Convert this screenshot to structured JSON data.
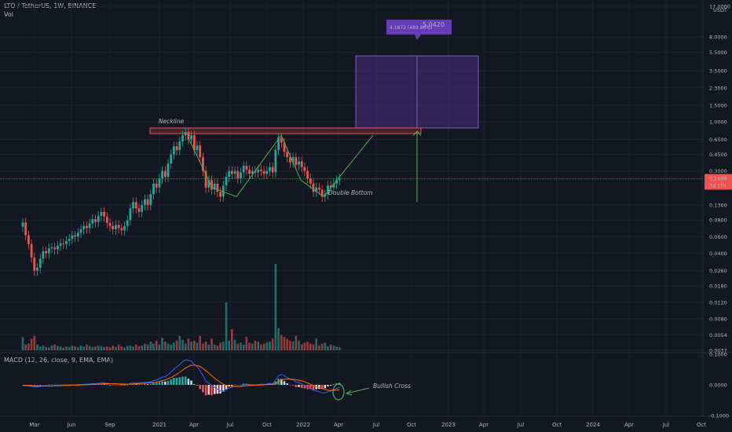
{
  "header": {
    "title": "LTO / TetherUS, 1W, BINANCE",
    "vol_label": "Vol",
    "macd_label": "MACD (12, 26, close, 9, EMA, EMA)"
  },
  "colors": {
    "background": "#131722",
    "bull": "#26a69a",
    "bear": "#ef5350",
    "annotation_green": "#4caf50",
    "target_box": "#673ab7",
    "macd_line": "#2962ff",
    "signal_line": "#ff6d00",
    "text": "#b2b5be"
  },
  "price_axis": {
    "currency": "USDT",
    "ticks": [
      "17.0000",
      "8.0000",
      "5.5000",
      "3.5000",
      "2.3000",
      "1.5000",
      "1.0000",
      "0.6500",
      "0.4500",
      "0.3000",
      "0.1300",
      "0.0900",
      "0.0600",
      "0.0400",
      "0.0260",
      "0.0180",
      "0.0120",
      "0.0080",
      "0.0054",
      "0.0037"
    ],
    "current_price": "0.2486",
    "countdown": "3d 17h"
  },
  "macd_axis": {
    "ticks": [
      "0.1000",
      "0.0000",
      "-0.1000"
    ]
  },
  "time_axis": {
    "labels": [
      "Mar",
      "Jun",
      "Sep",
      "2021",
      "Apr",
      "Jul",
      "Oct",
      "2022",
      "Apr",
      "Jul",
      "Oct",
      "2023",
      "Apr",
      "Jul",
      "Oct",
      "2024",
      "Apr",
      "Jul",
      "Oct"
    ]
  },
  "annotations": {
    "neckline": "Neckline",
    "pattern": "Double Bottom",
    "macd_note": "Bullish Cross",
    "target_change": "4.1872 (489.86%)",
    "target_price": "5.0420"
  },
  "chart_data": {
    "type": "candlestick",
    "symbol": "LTO / TetherUS",
    "interval": "1W",
    "exchange": "BINANCE",
    "y_scale": "log",
    "ylim": [
      0.0037,
      17
    ],
    "neckline_zone": [
      0.75,
      0.86
    ],
    "target_box": [
      0.86,
      5.042
    ],
    "x_range": [
      "2020-03",
      "2024-10"
    ],
    "close": [
      0.085,
      0.062,
      0.05,
      0.036,
      0.026,
      0.028,
      0.035,
      0.042,
      0.04,
      0.045,
      0.046,
      0.044,
      0.048,
      0.051,
      0.05,
      0.054,
      0.057,
      0.062,
      0.06,
      0.066,
      0.072,
      0.078,
      0.074,
      0.083,
      0.092,
      0.086,
      0.1,
      0.11,
      0.098,
      0.084,
      0.078,
      0.072,
      0.08,
      0.074,
      0.07,
      0.078,
      0.09,
      0.12,
      0.14,
      0.12,
      0.11,
      0.13,
      0.15,
      0.13,
      0.17,
      0.22,
      0.2,
      0.25,
      0.3,
      0.26,
      0.36,
      0.45,
      0.55,
      0.5,
      0.62,
      0.72,
      0.78,
      0.65,
      0.72,
      0.5,
      0.56,
      0.42,
      0.3,
      0.2,
      0.24,
      0.19,
      0.22,
      0.18,
      0.16,
      0.21,
      0.26,
      0.3,
      0.28,
      0.3,
      0.25,
      0.29,
      0.34,
      0.31,
      0.28,
      0.3,
      0.29,
      0.31,
      0.3,
      0.28,
      0.3,
      0.33,
      0.29,
      0.5,
      0.68,
      0.6,
      0.48,
      0.42,
      0.37,
      0.42,
      0.35,
      0.38,
      0.33,
      0.3,
      0.25,
      0.22,
      0.18,
      0.2,
      0.19,
      0.16,
      0.17,
      0.21,
      0.2,
      0.22,
      0.24,
      0.2486
    ],
    "volume": [
      0.28,
      0.12,
      0.14,
      0.24,
      0.3,
      0.12,
      0.08,
      0.1,
      0.07,
      0.06,
      0.1,
      0.12,
      0.09,
      0.08,
      0.06,
      0.08,
      0.07,
      0.1,
      0.08,
      0.06,
      0.1,
      0.08,
      0.12,
      0.09,
      0.07,
      0.08,
      0.1,
      0.09,
      0.07,
      0.08,
      0.06,
      0.1,
      0.07,
      0.12,
      0.08,
      0.06,
      0.09,
      0.1,
      0.08,
      0.12,
      0.09,
      0.1,
      0.14,
      0.12,
      0.18,
      0.14,
      0.2,
      0.12,
      0.26,
      0.18,
      0.14,
      0.12,
      0.16,
      0.2,
      0.3,
      0.22,
      0.14,
      0.24,
      0.18,
      0.2,
      0.16,
      0.3,
      0.14,
      0.18,
      0.12,
      0.24,
      0.12,
      0.1,
      0.16,
      0.18,
      1.0,
      0.2,
      0.44,
      0.22,
      0.14,
      0.16,
      0.12,
      0.28,
      0.16,
      0.14,
      0.2,
      0.18,
      0.12,
      0.14,
      0.16,
      0.18,
      0.24,
      1.8,
      0.46,
      0.32,
      0.28,
      0.24,
      0.2,
      0.18,
      0.3,
      0.2,
      0.12,
      0.16,
      0.18,
      0.14,
      0.12,
      0.24,
      0.1,
      0.14,
      0.16,
      0.08,
      0.12,
      0.1,
      0.08,
      0.06
    ],
    "macd": [
      -0.002,
      -0.003,
      -0.004,
      -0.005,
      -0.006,
      -0.006,
      -0.005,
      -0.004,
      -0.004,
      -0.003,
      -0.003,
      -0.002,
      -0.002,
      -0.002,
      -0.001,
      -0.001,
      -0.001,
      0.0,
      0.0,
      0.001,
      0.001,
      0.002,
      0.002,
      0.003,
      0.004,
      0.004,
      0.005,
      0.006,
      0.006,
      0.005,
      0.004,
      0.003,
      0.003,
      0.002,
      0.001,
      0.001,
      0.002,
      0.004,
      0.006,
      0.006,
      0.006,
      0.007,
      0.008,
      0.008,
      0.01,
      0.014,
      0.016,
      0.02,
      0.025,
      0.027,
      0.033,
      0.042,
      0.052,
      0.058,
      0.066,
      0.075,
      0.082,
      0.08,
      0.078,
      0.066,
      0.06,
      0.046,
      0.03,
      0.012,
      0.006,
      -0.004,
      -0.008,
      -0.014,
      -0.02,
      -0.02,
      -0.016,
      -0.01,
      -0.008,
      -0.004,
      -0.006,
      -0.004,
      0.0,
      0.001,
      0.0,
      0.0,
      0.0,
      0.001,
      0.002,
      0.002,
      0.003,
      0.005,
      0.004,
      0.016,
      0.03,
      0.034,
      0.03,
      0.024,
      0.018,
      0.016,
      0.01,
      0.008,
      0.003,
      -0.002,
      -0.008,
      -0.012,
      -0.018,
      -0.02,
      -0.022,
      -0.026,
      -0.026,
      -0.022,
      -0.02,
      -0.016,
      -0.012,
      -0.009
    ],
    "signal": [
      -0.001,
      -0.002,
      -0.002,
      -0.003,
      -0.004,
      -0.004,
      -0.004,
      -0.004,
      -0.004,
      -0.004,
      -0.004,
      -0.003,
      -0.003,
      -0.003,
      -0.002,
      -0.002,
      -0.002,
      -0.001,
      -0.001,
      -0.001,
      0.0,
      0.0,
      0.001,
      0.001,
      0.002,
      0.002,
      0.003,
      0.003,
      0.004,
      0.004,
      0.004,
      0.004,
      0.004,
      0.003,
      0.003,
      0.003,
      0.002,
      0.003,
      0.003,
      0.004,
      0.004,
      0.005,
      0.005,
      0.006,
      0.007,
      0.008,
      0.009,
      0.011,
      0.014,
      0.016,
      0.02,
      0.024,
      0.029,
      0.035,
      0.041,
      0.048,
      0.055,
      0.06,
      0.064,
      0.064,
      0.063,
      0.06,
      0.054,
      0.046,
      0.038,
      0.03,
      0.022,
      0.015,
      0.008,
      0.002,
      -0.002,
      -0.004,
      -0.005,
      -0.005,
      -0.005,
      -0.005,
      -0.004,
      -0.003,
      -0.002,
      -0.002,
      -0.001,
      -0.001,
      0.0,
      0.0,
      0.001,
      0.002,
      0.002,
      0.005,
      0.01,
      0.015,
      0.018,
      0.019,
      0.019,
      0.018,
      0.017,
      0.015,
      0.013,
      0.01,
      0.006,
      0.002,
      -0.002,
      -0.006,
      -0.009,
      -0.012,
      -0.015,
      -0.017,
      -0.018,
      -0.018,
      -0.017,
      -0.016
    ]
  }
}
